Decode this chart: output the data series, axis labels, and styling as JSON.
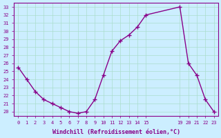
{
  "x": [
    0,
    1,
    2,
    3,
    4,
    5,
    6,
    7,
    8,
    9,
    10,
    11,
    12,
    13,
    14,
    15,
    19,
    20,
    21,
    22,
    23
  ],
  "y": [
    25.5,
    24.0,
    22.5,
    21.5,
    21.0,
    20.5,
    20.0,
    19.8,
    20.0,
    21.5,
    24.5,
    27.5,
    28.8,
    29.5,
    30.5,
    32.0,
    33.0,
    26.0,
    24.5,
    21.5,
    20.0
  ],
  "line_color": "#880088",
  "bg_color": "#cceeff",
  "grid_color": "#aaddcc",
  "xlabel": "Windchill (Refroidissement éolien,°C)",
  "xlim": [
    -0.5,
    23.5
  ],
  "ylim": [
    19.5,
    33.5
  ],
  "yticks": [
    20,
    21,
    22,
    23,
    24,
    25,
    26,
    27,
    28,
    29,
    30,
    31,
    32,
    33
  ],
  "xticks": [
    0,
    1,
    2,
    3,
    4,
    5,
    6,
    7,
    8,
    9,
    10,
    11,
    12,
    13,
    14,
    15,
    19,
    20,
    21,
    22,
    23
  ],
  "tick_color": "#880088",
  "label_color": "#880088",
  "axis_color": "#880088"
}
